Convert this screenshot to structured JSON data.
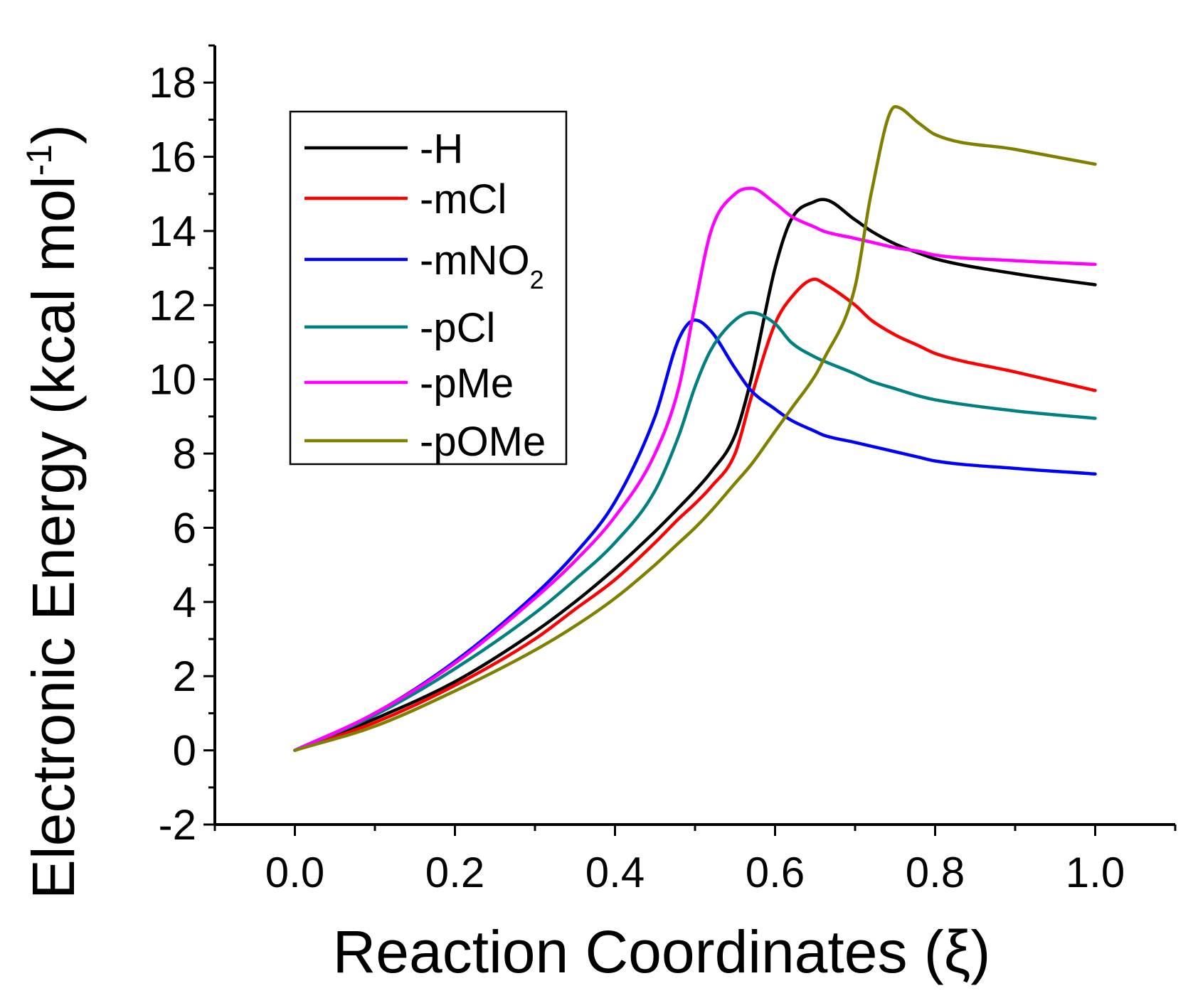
{
  "chart_data": {
    "type": "line",
    "xlabel": "Reaction Coordinates (ξ)",
    "ylabel": "Electronic Energy (kcal mol",
    "ylabel_superscript": "-1",
    "ylabel_close": ")",
    "xlim": [
      -0.1,
      1.1
    ],
    "ylim": [
      -2,
      19
    ],
    "x_ticks": [
      "0.0",
      "0.2",
      "0.4",
      "0.6",
      "0.8",
      "1.0"
    ],
    "y_ticks": [
      "-2",
      "0",
      "2",
      "4",
      "6",
      "8",
      "10",
      "12",
      "14",
      "16",
      "18"
    ],
    "grid": false,
    "legend_position": "top-left",
    "x": [
      0.0,
      0.1,
      0.2,
      0.3,
      0.35,
      0.4,
      0.45,
      0.48,
      0.5,
      0.52,
      0.55,
      0.57,
      0.6,
      0.62,
      0.65,
      0.66,
      0.7,
      0.72,
      0.75,
      0.78,
      0.8,
      0.9,
      1.0
    ],
    "series": [
      {
        "name": "-H",
        "color": "#000000",
        "values": [
          0.0,
          0.85,
          1.85,
          3.2,
          4.0,
          4.9,
          5.9,
          6.55,
          7.0,
          7.5,
          8.5,
          10.0,
          13.0,
          14.3,
          14.8,
          14.85,
          14.3,
          14.0,
          13.65,
          13.4,
          13.25,
          12.85,
          12.55
        ]
      },
      {
        "name": "-mCl",
        "color": "#ff0000",
        "values": [
          0.0,
          0.75,
          1.75,
          3.0,
          3.8,
          4.6,
          5.6,
          6.25,
          6.65,
          7.1,
          8.0,
          9.5,
          11.5,
          12.2,
          12.7,
          12.6,
          12.0,
          11.6,
          11.2,
          10.9,
          10.7,
          10.2,
          9.7
        ]
      },
      {
        "name": "-mNO",
        "sub": "2",
        "color": "#0000ff",
        "values": [
          0.0,
          1.0,
          2.4,
          4.2,
          5.3,
          6.7,
          9.0,
          11.1,
          11.6,
          11.3,
          10.3,
          9.7,
          9.2,
          8.9,
          8.6,
          8.5,
          8.3,
          8.2,
          8.05,
          7.9,
          7.8,
          7.6,
          7.45
        ]
      },
      {
        "name": "-pCl",
        "color": "#008080",
        "values": [
          0.0,
          0.95,
          2.2,
          3.7,
          4.6,
          5.6,
          7.0,
          8.5,
          9.8,
          10.8,
          11.6,
          11.8,
          11.5,
          11.0,
          10.6,
          10.5,
          10.15,
          9.95,
          9.75,
          9.55,
          9.45,
          9.15,
          8.95
        ]
      },
      {
        "name": "-pMe",
        "color": "#ff00ff",
        "values": [
          0.0,
          1.0,
          2.35,
          4.1,
          5.1,
          6.3,
          8.0,
          9.8,
          12.0,
          14.0,
          15.0,
          15.15,
          14.75,
          14.4,
          14.1,
          14.0,
          13.8,
          13.7,
          13.55,
          13.45,
          13.35,
          13.2,
          13.1
        ]
      },
      {
        "name": "-pOMe",
        "color": "#808000",
        "values": [
          0.0,
          0.65,
          1.6,
          2.7,
          3.35,
          4.1,
          5.0,
          5.6,
          6.0,
          6.45,
          7.2,
          7.7,
          8.6,
          9.2,
          10.1,
          10.5,
          12.5,
          15.0,
          17.35,
          16.9,
          16.6,
          16.2,
          15.8
        ]
      }
    ]
  }
}
